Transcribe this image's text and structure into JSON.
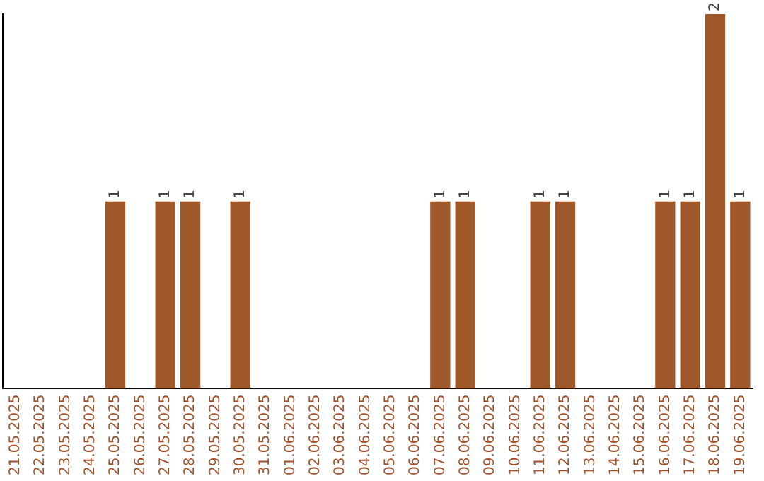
{
  "chart_data": {
    "type": "bar",
    "categories": [
      "21.05.2025",
      "22.05.2025",
      "23.05.2025",
      "24.05.2025",
      "25.05.2025",
      "26.05.2025",
      "27.05.2025",
      "28.05.2025",
      "29.05.2025",
      "30.05.2025",
      "31.05.2025",
      "01.06.2025",
      "02.06.2025",
      "03.06.2025",
      "04.06.2025",
      "05.06.2025",
      "06.06.2025",
      "07.06.2025",
      "08.06.2025",
      "09.06.2025",
      "10.06.2025",
      "11.06.2025",
      "12.06.2025",
      "13.06.2025",
      "14.06.2025",
      "15.06.2025",
      "16.06.2025",
      "17.06.2025",
      "18.06.2025",
      "19.06.2025"
    ],
    "values": [
      0,
      0,
      0,
      0,
      1,
      0,
      1,
      1,
      0,
      1,
      0,
      0,
      0,
      0,
      0,
      0,
      0,
      1,
      1,
      0,
      0,
      1,
      1,
      0,
      0,
      0,
      1,
      1,
      2,
      1
    ],
    "value_labels": [
      null,
      null,
      null,
      null,
      "1",
      null,
      "1",
      "1",
      null,
      "1",
      null,
      null,
      null,
      null,
      null,
      null,
      null,
      "1",
      "1",
      null,
      null,
      "1",
      "1",
      null,
      null,
      null,
      "1",
      "1",
      "2",
      "1"
    ],
    "color": "#a0592a",
    "ylim": [
      0,
      2
    ],
    "tick_labels": "x",
    "grid": false,
    "legend": false
  }
}
